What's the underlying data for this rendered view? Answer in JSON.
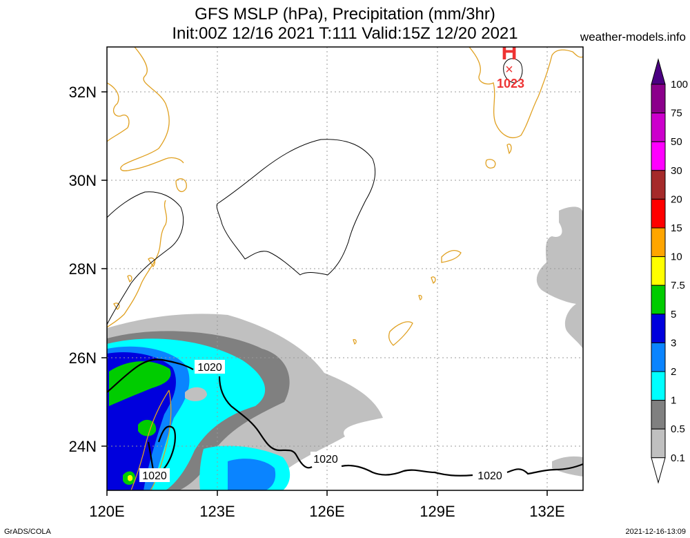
{
  "header": {
    "title_line1": "GFS MSLP (hPa), Precipitation (mm/3hr)",
    "title_line2": "Init:00Z 12/16 2021 T:111 Valid:15Z 12/20 2021",
    "site": "weather-models.info"
  },
  "map": {
    "lon_ticks": [
      "120E",
      "123E",
      "126E",
      "129E",
      "132E"
    ],
    "lat_ticks": [
      "32N",
      "30N",
      "28N",
      "26N",
      "24N"
    ],
    "isobar_labels": [
      "1020",
      "1020",
      "1020",
      "1020"
    ],
    "high_marker": {
      "symbol": "H",
      "value": "1023"
    }
  },
  "legend": {
    "labels": [
      "100",
      "75",
      "50",
      "30",
      "20",
      "15",
      "10",
      "7.5",
      "5",
      "3",
      "2",
      "1",
      "0.5",
      "0.1"
    ],
    "colors": [
      "#4b0082",
      "#8b008b",
      "#cc00cc",
      "#ff00ff",
      "#a52a2a",
      "#ff0000",
      "#ffa500",
      "#ffff00",
      "#00cc00",
      "#0000dd",
      "#0a84ff",
      "#00ffff",
      "#808080",
      "#c0c0c0",
      "#ffffff"
    ]
  },
  "footer": {
    "left": "GrADS/COLA",
    "right": "2021-12-16-13:09"
  },
  "colors": {
    "coastline": "#e0a020",
    "isobar": "#000000",
    "high": "#ee3333",
    "grid": "#999999"
  }
}
